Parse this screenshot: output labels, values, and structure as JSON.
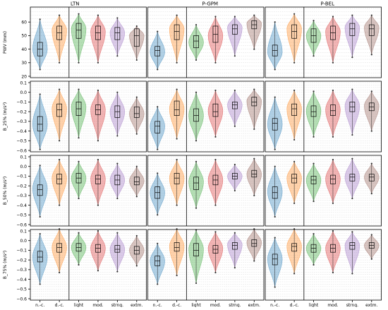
{
  "columns": [
    "LTN",
    "P-GPM",
    "P-BEL"
  ],
  "categories": [
    "n.-c.",
    "d.-c.",
    "light",
    "mod.",
    "strng.",
    "extm."
  ],
  "colors": [
    "#1f77b4",
    "#ff7f0e",
    "#2ca02c",
    "#d62728",
    "#9467bd",
    "#8c564b"
  ],
  "rows": [
    {
      "ylabel": "PWV (mm)",
      "ylim": [
        20,
        70
      ],
      "ticks": [
        "20",
        "30",
        "40",
        "50",
        "60"
      ]
    },
    {
      "ylabel": "B_25% (m/s²)",
      "ylim": [
        -0.6,
        0.1
      ],
      "ticks": [
        "−0.6",
        "−0.5",
        "−0.4",
        "−0.3",
        "−0.2",
        "−0.1",
        "0.0",
        "0.1"
      ]
    },
    {
      "ylabel": "B_50% (m/s²)",
      "ylim": [
        -0.6,
        0.1
      ],
      "ticks": [
        "−0.6",
        "−0.5",
        "−0.4",
        "−0.3",
        "−0.2",
        "−0.1",
        "0.0",
        "0.1"
      ]
    },
    {
      "ylabel": "B_75% (m/s²)",
      "ylim": [
        -0.6,
        0.1
      ],
      "ticks": [
        "−0.6",
        "−0.5",
        "−0.4",
        "−0.3",
        "−0.2",
        "−0.1",
        "0.0",
        "0.1"
      ]
    }
  ],
  "chart_data": {
    "type": "violin",
    "row_variables": [
      "PWV (mm)",
      "B_25% (m/s²)",
      "B_50% (m/s²)",
      "B_75% (m/s²)"
    ],
    "column_stations": [
      "LTN",
      "P-GPM",
      "P-BEL"
    ],
    "categories": [
      "n.-c.",
      "d.-c.",
      "light",
      "mod.",
      "strng.",
      "extm."
    ],
    "panels": [
      {
        "row": 0,
        "col": 0,
        "series": [
          {
            "min": 25,
            "q1": 35,
            "median": 40,
            "q3": 45,
            "max": 62,
            "peak": 40
          },
          {
            "min": 30,
            "q1": 47,
            "median": 52,
            "q3": 57,
            "max": 65,
            "peak": 54
          },
          {
            "min": 30,
            "q1": 48,
            "median": 54,
            "q3": 59,
            "max": 66,
            "peak": 55
          },
          {
            "min": 30,
            "q1": 47,
            "median": 52,
            "q3": 57,
            "max": 65,
            "peak": 53
          },
          {
            "min": 35,
            "q1": 47,
            "median": 52,
            "q3": 56,
            "max": 63,
            "peak": 52
          },
          {
            "min": 32,
            "q1": 42,
            "median": 50,
            "q3": 55,
            "max": 57,
            "peak": 50
          }
        ]
      },
      {
        "row": 0,
        "col": 1,
        "series": [
          {
            "min": 25,
            "q1": 35,
            "median": 39,
            "q3": 42,
            "max": 53,
            "peak": 38
          },
          {
            "min": 30,
            "q1": 47,
            "median": 53,
            "q3": 58,
            "max": 65,
            "peak": 55
          },
          {
            "min": 32,
            "q1": 41,
            "median": 46,
            "q3": 50,
            "max": 58,
            "peak": 45
          },
          {
            "min": 30,
            "q1": 45,
            "median": 51,
            "q3": 57,
            "max": 64,
            "peak": 50
          },
          {
            "min": 35,
            "q1": 51,
            "median": 55,
            "q3": 58,
            "max": 64,
            "peak": 56
          },
          {
            "min": 40,
            "q1": 55,
            "median": 58,
            "q3": 61,
            "max": 65,
            "peak": 59
          }
        ]
      },
      {
        "row": 0,
        "col": 2,
        "series": [
          {
            "min": 25,
            "q1": 35,
            "median": 39,
            "q3": 43,
            "max": 60,
            "peak": 38
          },
          {
            "min": 30,
            "q1": 48,
            "median": 53,
            "q3": 58,
            "max": 66,
            "peak": 55
          },
          {
            "min": 35,
            "q1": 45,
            "median": 50,
            "q3": 55,
            "max": 61,
            "peak": 50
          },
          {
            "min": 30,
            "q1": 47,
            "median": 52,
            "q3": 57,
            "max": 64,
            "peak": 53
          },
          {
            "min": 34,
            "q1": 50,
            "median": 55,
            "q3": 59,
            "max": 65,
            "peak": 56
          },
          {
            "min": 36,
            "q1": 50,
            "median": 55,
            "q3": 58,
            "max": 65,
            "peak": 56
          }
        ]
      },
      {
        "row": 1,
        "col": 0,
        "series": [
          {
            "min": -0.59,
            "q1": -0.4,
            "median": -0.33,
            "q3": -0.25,
            "max": -0.02,
            "peak": -0.33
          },
          {
            "min": -0.5,
            "q1": -0.25,
            "median": -0.18,
            "q3": -0.12,
            "max": 0.03,
            "peak": -0.17
          },
          {
            "min": -0.47,
            "q1": -0.24,
            "median": -0.17,
            "q3": -0.1,
            "max": 0.03,
            "peak": -0.15
          },
          {
            "min": -0.5,
            "q1": -0.23,
            "median": -0.18,
            "q3": -0.13,
            "max": 0.02,
            "peak": -0.18
          },
          {
            "min": -0.45,
            "q1": -0.26,
            "median": -0.2,
            "q3": -0.14,
            "max": 0.0,
            "peak": -0.2
          },
          {
            "min": -0.43,
            "q1": -0.26,
            "median": -0.22,
            "q3": -0.15,
            "max": -0.05,
            "peak": -0.22
          }
        ]
      },
      {
        "row": 1,
        "col": 1,
        "series": [
          {
            "min": -0.59,
            "q1": -0.42,
            "median": -0.35,
            "q3": -0.3,
            "max": -0.15,
            "peak": -0.35
          },
          {
            "min": -0.48,
            "q1": -0.24,
            "median": -0.18,
            "q3": -0.09,
            "max": 0.03,
            "peak": -0.17
          },
          {
            "min": -0.5,
            "q1": -0.3,
            "median": -0.24,
            "q3": -0.17,
            "max": 0.0,
            "peak": -0.24
          },
          {
            "min": -0.46,
            "q1": -0.25,
            "median": -0.2,
            "q3": -0.12,
            "max": 0.02,
            "peak": -0.19
          },
          {
            "min": -0.35,
            "q1": -0.17,
            "median": -0.13,
            "q3": -0.1,
            "max": 0.02,
            "peak": -0.13
          },
          {
            "min": -0.38,
            "q1": -0.14,
            "median": -0.1,
            "q3": -0.05,
            "max": 0.03,
            "peak": -0.09
          }
        ]
      },
      {
        "row": 1,
        "col": 2,
        "series": [
          {
            "min": -0.59,
            "q1": -0.39,
            "median": -0.32,
            "q3": -0.27,
            "max": -0.05,
            "peak": -0.33
          },
          {
            "min": -0.49,
            "q1": -0.24,
            "median": -0.17,
            "q3": -0.12,
            "max": 0.02,
            "peak": -0.17
          },
          {
            "min": -0.46,
            "q1": -0.25,
            "median": -0.2,
            "q3": -0.14,
            "max": 0.01,
            "peak": -0.19
          },
          {
            "min": -0.46,
            "q1": -0.24,
            "median": -0.19,
            "q3": -0.13,
            "max": 0.02,
            "peak": -0.18
          },
          {
            "min": -0.44,
            "q1": -0.2,
            "median": -0.15,
            "q3": -0.1,
            "max": 0.03,
            "peak": -0.14
          },
          {
            "min": -0.4,
            "q1": -0.19,
            "median": -0.15,
            "q3": -0.11,
            "max": 0.01,
            "peak": -0.14
          }
        ]
      },
      {
        "row": 2,
        "col": 0,
        "series": [
          {
            "min": -0.52,
            "q1": -0.3,
            "median": -0.24,
            "q3": -0.19,
            "max": 0.01,
            "peak": -0.23
          },
          {
            "min": -0.4,
            "q1": -0.18,
            "median": -0.13,
            "q3": -0.08,
            "max": 0.07,
            "peak": -0.12
          },
          {
            "min": -0.33,
            "q1": -0.17,
            "median": -0.12,
            "q3": -0.07,
            "max": 0.05,
            "peak": -0.12
          },
          {
            "min": -0.4,
            "q1": -0.18,
            "median": -0.13,
            "q3": -0.09,
            "max": 0.07,
            "peak": -0.13
          },
          {
            "min": -0.33,
            "q1": -0.19,
            "median": -0.14,
            "q3": -0.09,
            "max": 0.03,
            "peak": -0.14
          },
          {
            "min": -0.31,
            "q1": -0.19,
            "median": -0.16,
            "q3": -0.11,
            "max": 0.0,
            "peak": -0.15
          }
        ]
      },
      {
        "row": 2,
        "col": 1,
        "series": [
          {
            "min": -0.5,
            "q1": -0.33,
            "median": -0.27,
            "q3": -0.21,
            "max": -0.07,
            "peak": -0.27
          },
          {
            "min": -0.4,
            "q1": -0.18,
            "median": -0.12,
            "q3": -0.07,
            "max": 0.07,
            "peak": -0.12
          },
          {
            "min": -0.43,
            "q1": -0.24,
            "median": -0.17,
            "q3": -0.11,
            "max": 0.05,
            "peak": -0.16
          },
          {
            "min": -0.4,
            "q1": -0.19,
            "median": -0.14,
            "q3": -0.09,
            "max": 0.07,
            "peak": -0.14
          },
          {
            "min": -0.25,
            "q1": -0.13,
            "median": -0.1,
            "q3": -0.07,
            "max": 0.02,
            "peak": -0.1
          },
          {
            "min": -0.3,
            "q1": -0.11,
            "median": -0.08,
            "q3": -0.04,
            "max": 0.08,
            "peak": -0.08
          }
        ]
      },
      {
        "row": 2,
        "col": 2,
        "series": [
          {
            "min": -0.52,
            "q1": -0.33,
            "median": -0.27,
            "q3": -0.21,
            "max": 0.0,
            "peak": -0.26
          },
          {
            "min": -0.38,
            "q1": -0.17,
            "median": -0.12,
            "q3": -0.08,
            "max": 0.05,
            "peak": -0.12
          },
          {
            "min": -0.36,
            "q1": -0.18,
            "median": -0.14,
            "q3": -0.1,
            "max": 0.03,
            "peak": -0.14
          },
          {
            "min": -0.38,
            "q1": -0.18,
            "median": -0.13,
            "q3": -0.09,
            "max": 0.07,
            "peak": -0.13
          },
          {
            "min": -0.33,
            "q1": -0.15,
            "median": -0.11,
            "q3": -0.08,
            "max": 0.08,
            "peak": -0.11
          },
          {
            "min": -0.28,
            "q1": -0.15,
            "median": -0.11,
            "q3": -0.08,
            "max": 0.03,
            "peak": -0.11
          }
        ]
      },
      {
        "row": 3,
        "col": 0,
        "series": [
          {
            "min": -0.45,
            "q1": -0.22,
            "median": -0.17,
            "q3": -0.11,
            "max": 0.07,
            "peak": -0.17
          },
          {
            "min": -0.33,
            "q1": -0.12,
            "median": -0.07,
            "q3": -0.03,
            "max": 0.12,
            "peak": -0.07
          },
          {
            "min": -0.25,
            "q1": -0.11,
            "median": -0.07,
            "q3": -0.03,
            "max": 0.08,
            "peak": -0.07
          },
          {
            "min": -0.31,
            "q1": -0.12,
            "median": -0.08,
            "q3": -0.04,
            "max": 0.1,
            "peak": -0.08
          },
          {
            "min": -0.32,
            "q1": -0.12,
            "median": -0.09,
            "q3": -0.05,
            "max": 0.08,
            "peak": -0.09
          },
          {
            "min": -0.26,
            "q1": -0.14,
            "median": -0.1,
            "q3": -0.06,
            "max": 0.05,
            "peak": -0.1
          }
        ]
      },
      {
        "row": 3,
        "col": 1,
        "series": [
          {
            "min": -0.45,
            "q1": -0.26,
            "median": -0.21,
            "q3": -0.16,
            "max": -0.03,
            "peak": -0.21
          },
          {
            "min": -0.36,
            "q1": -0.11,
            "median": -0.07,
            "q3": -0.02,
            "max": 0.12,
            "peak": -0.06
          },
          {
            "min": -0.44,
            "q1": -0.16,
            "median": -0.1,
            "q3": -0.03,
            "max": 0.11,
            "peak": -0.09
          },
          {
            "min": -0.33,
            "q1": -0.13,
            "median": -0.09,
            "q3": -0.05,
            "max": 0.09,
            "peak": -0.08
          },
          {
            "min": -0.28,
            "q1": -0.09,
            "median": -0.05,
            "q3": -0.02,
            "max": 0.08,
            "peak": -0.04
          },
          {
            "min": -0.21,
            "q1": -0.06,
            "median": -0.03,
            "q3": 0.01,
            "max": 0.12,
            "peak": -0.02
          }
        ]
      },
      {
        "row": 3,
        "col": 2,
        "series": [
          {
            "min": -0.48,
            "q1": -0.25,
            "median": -0.19,
            "q3": -0.14,
            "max": 0.03,
            "peak": -0.19
          },
          {
            "min": -0.34,
            "q1": -0.11,
            "median": -0.06,
            "q3": -0.03,
            "max": 0.12,
            "peak": -0.06
          },
          {
            "min": -0.25,
            "q1": -0.12,
            "median": -0.08,
            "q3": -0.04,
            "max": 0.07,
            "peak": -0.08
          },
          {
            "min": -0.33,
            "q1": -0.12,
            "median": -0.08,
            "q3": -0.04,
            "max": 0.1,
            "peak": -0.08
          },
          {
            "min": -0.34,
            "q1": -0.09,
            "median": -0.05,
            "q3": -0.02,
            "max": 0.09,
            "peak": -0.05
          },
          {
            "min": -0.19,
            "q1": -0.08,
            "median": -0.05,
            "q3": -0.02,
            "max": 0.06,
            "peak": -0.05
          }
        ]
      }
    ],
    "grid": true
  }
}
